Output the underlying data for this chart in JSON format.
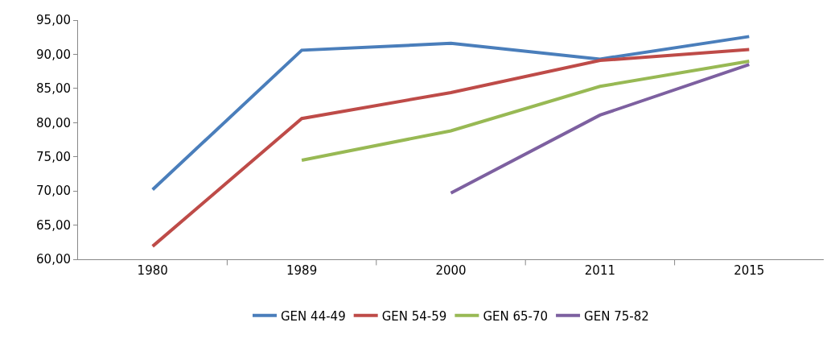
{
  "chart_data": {
    "type": "line",
    "categories": [
      "1980",
      "1989",
      "2000",
      "2011",
      "2015"
    ],
    "series": [
      {
        "name": "GEN 44-49",
        "color": "#4a7ebb",
        "values": [
          70.2,
          90.6,
          91.6,
          89.3,
          92.6
        ]
      },
      {
        "name": "GEN 54-59",
        "color": "#be4b48",
        "values": [
          61.9,
          80.6,
          84.4,
          89.1,
          90.7
        ]
      },
      {
        "name": "GEN 65-70",
        "color": "#98b954",
        "values": [
          null,
          74.5,
          78.8,
          85.3,
          89.0
        ]
      },
      {
        "name": "GEN 75-82",
        "color": "#7d60a0",
        "values": [
          null,
          null,
          69.7,
          81.1,
          88.5
        ]
      }
    ],
    "ylim": [
      60,
      95
    ],
    "yticks": [
      {
        "value": 60,
        "label": "60,00"
      },
      {
        "value": 65,
        "label": "65,00"
      },
      {
        "value": 70,
        "label": "70,00"
      },
      {
        "value": 75,
        "label": "75,00"
      },
      {
        "value": 80,
        "label": "80,00"
      },
      {
        "value": 85,
        "label": "85,00"
      },
      {
        "value": 90,
        "label": "90,00"
      },
      {
        "value": 95,
        "label": "95,00"
      }
    ],
    "grid": false,
    "legend": "bottom",
    "marker": "none",
    "line_style": "solid"
  }
}
